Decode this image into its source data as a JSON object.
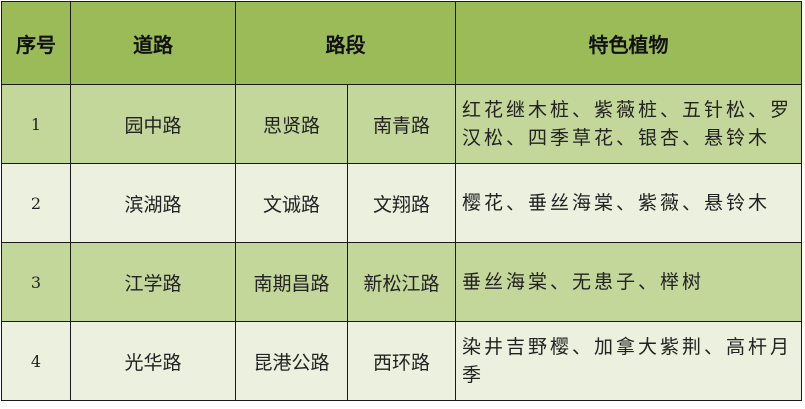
{
  "table": {
    "headers": {
      "index": "序号",
      "road": "道路",
      "section": "路段",
      "plants": "特色植物"
    },
    "colors": {
      "header": "#9bbb59",
      "odd_row": "#c4d79b",
      "even_row": "#ebf1de"
    },
    "rows": [
      {
        "index": "1",
        "road": "园中路",
        "from": "思贤路",
        "to": "南青路",
        "plants": "红花继木桩、紫薇桩、五针松、罗汉松、四季草花、银杏、悬铃木"
      },
      {
        "index": "2",
        "road": "滨湖路",
        "from": "文诚路",
        "to": "文翔路",
        "plants": "樱花、垂丝海棠、紫薇、悬铃木"
      },
      {
        "index": "3",
        "road": "江学路",
        "from": "南期昌路",
        "to": "新松江路",
        "plants": "垂丝海棠、无患子、榉树"
      },
      {
        "index": "4",
        "road": "光华路",
        "from": "昆港公路",
        "to": "西环路",
        "plants": "染井吉野樱、加拿大紫荆、高杆月季"
      }
    ]
  }
}
